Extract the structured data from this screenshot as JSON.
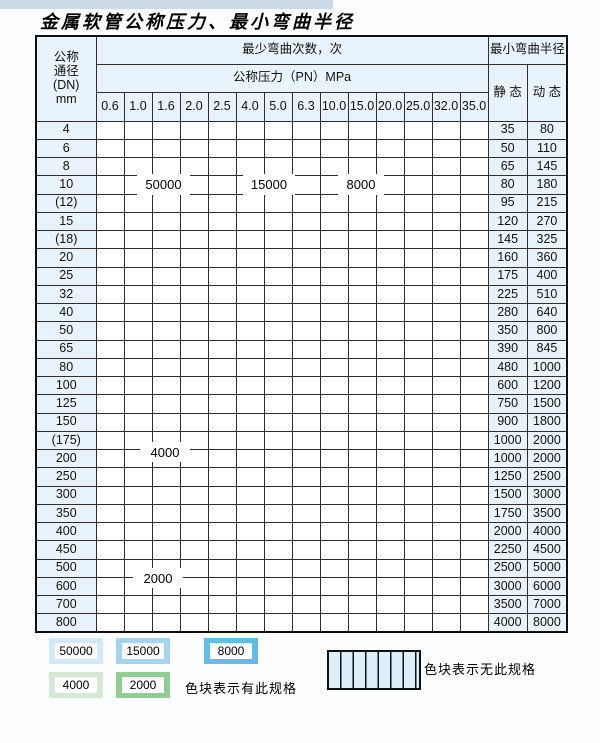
{
  "title": "金属软管公称压力、最小弯曲半径",
  "header": {
    "dn_lines": [
      "公称",
      "通径",
      "(DN)",
      "mm"
    ],
    "bend_cycles_label": "最少弯曲次数，次",
    "pressure_label": "公称压力（PN）MPa",
    "radius_label": "最小弯曲半径",
    "static_label": "静 态",
    "dynamic_label": "动 态"
  },
  "overlays": [
    "50000",
    "15000",
    "8000",
    "4000",
    "2000"
  ],
  "legend": {
    "swatches": [
      {
        "label": "50000",
        "zone": "L"
      },
      {
        "label": "15000",
        "zone": "M"
      },
      {
        "label": "8000",
        "zone": "D"
      },
      {
        "label": "4000",
        "zone": "G"
      },
      {
        "label": "2000",
        "zone": "g"
      }
    ],
    "has_spec_note": "色块表示有此规格",
    "no_spec_note": "色块表示无此规格"
  },
  "colors": {
    "light_blue": "#d2e9f8",
    "medium_blue": "#a4d4f0",
    "dark_blue": "#66bce9",
    "light_green": "#d6e9d5",
    "medium_green": "#92cc95",
    "header_bg": "#e9f3fb",
    "hatch_bg": "#eef5fc",
    "grid": "#2f2f2f"
  },
  "chart_data": {
    "type": "table",
    "title": "金属软管公称压力、最小弯曲半径",
    "pressure_columns_MPa": [
      "0.6",
      "1.0",
      "1.6",
      "2.0",
      "2.5",
      "4.0",
      "5.0",
      "6.3",
      "10.0",
      "15.0",
      "20.0",
      "25.0",
      "32.0",
      "35.0"
    ],
    "zone_legend": {
      "L": "最少弯曲次数 50000 次",
      "M": "最少弯曲次数 15000 次",
      "D": "最少弯曲次数 8000 次",
      "G": "最少弯曲次数 4000 次",
      "g": "最少弯曲次数 2000 次",
      "H": "无此规格"
    },
    "rows": [
      {
        "dn": "4",
        "zones": "LLLLLMMMDDDDDD",
        "static": "35",
        "dynamic": "80"
      },
      {
        "dn": "6",
        "zones": "LLLLLMMMDDDDHH",
        "static": "50",
        "dynamic": "110"
      },
      {
        "dn": "8",
        "zones": "LLLLLMMMDDDDHH",
        "static": "65",
        "dynamic": "145"
      },
      {
        "dn": "10",
        "zones": "LLLLLMMMDDDDHH",
        "static": "80",
        "dynamic": "180"
      },
      {
        "dn": "(12)",
        "zones": "LLLLLMMMDDDDHH",
        "static": "95",
        "dynamic": "215"
      },
      {
        "dn": "15",
        "zones": "LLLLLMMMDDDDHH",
        "static": "120",
        "dynamic": "270"
      },
      {
        "dn": "(18)",
        "zones": "LLLLLMMMDDDHHH",
        "static": "145",
        "dynamic": "325"
      },
      {
        "dn": "20",
        "zones": "LLLLLMMMDDDHHH",
        "static": "160",
        "dynamic": "360"
      },
      {
        "dn": "25",
        "zones": "LLLLLMMMDDHHHH",
        "static": "175",
        "dynamic": "400"
      },
      {
        "dn": "32",
        "zones": "LLLLLMDDDHHHHH",
        "static": "225",
        "dynamic": "510"
      },
      {
        "dn": "40",
        "zones": "LLLLLMDDDHHHHH",
        "static": "280",
        "dynamic": "640"
      },
      {
        "dn": "50",
        "zones": "LLLLLMDDHHHHHH",
        "static": "350",
        "dynamic": "800"
      },
      {
        "dn": "65",
        "zones": "LLMMMMDDHHHHHH",
        "static": "390",
        "dynamic": "845"
      },
      {
        "dn": "80",
        "zones": "LLMMMDDHHHHHHH",
        "static": "480",
        "dynamic": "1000"
      },
      {
        "dn": "100",
        "zones": "GGGGGGHHHHHHHH",
        "static": "600",
        "dynamic": "1200"
      },
      {
        "dn": "125",
        "zones": "GGGGGGHHHHHHHH",
        "static": "750",
        "dynamic": "1500"
      },
      {
        "dn": "150",
        "zones": "GGGGGGHHHHHHHH",
        "static": "900",
        "dynamic": "1800"
      },
      {
        "dn": "(175)",
        "zones": "GGGGGGHHHHHHHH",
        "static": "1000",
        "dynamic": "2000"
      },
      {
        "dn": "200",
        "zones": "GGGGGGHHHHHHHH",
        "static": "1000",
        "dynamic": "2000"
      },
      {
        "dn": "250",
        "zones": "GGGGGGHHHHHHHH",
        "static": "1250",
        "dynamic": "2500"
      },
      {
        "dn": "300",
        "zones": "GGGGGGHHHHHHHH",
        "static": "1500",
        "dynamic": "3000"
      },
      {
        "dn": "350",
        "zones": "gggggHHHHHHHHH",
        "static": "1750",
        "dynamic": "3500"
      },
      {
        "dn": "400",
        "zones": "gggggHHHHHHHHH",
        "static": "2000",
        "dynamic": "4000"
      },
      {
        "dn": "450",
        "zones": "gggggHHHHHHHHH",
        "static": "2250",
        "dynamic": "4500"
      },
      {
        "dn": "500",
        "zones": "gggggHHHHHHHHH",
        "static": "2500",
        "dynamic": "5000"
      },
      {
        "dn": "600",
        "zones": "ggggHHHHHHHHHH",
        "static": "3000",
        "dynamic": "6000"
      },
      {
        "dn": "700",
        "zones": "gggHHHHHHHHHHH",
        "static": "3500",
        "dynamic": "7000"
      },
      {
        "dn": "800",
        "zones": "gggHHHHHHHHHHH",
        "static": "4000",
        "dynamic": "8000"
      }
    ]
  }
}
